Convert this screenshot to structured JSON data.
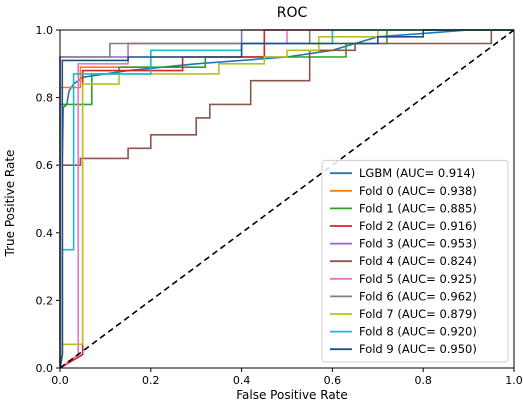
{
  "chart_data": {
    "type": "line",
    "title": "ROC",
    "xlabel": "False Positive Rate",
    "ylabel": "True Positive Rate",
    "xlim": [
      0.0,
      1.0
    ],
    "ylim": [
      0.0,
      1.0
    ],
    "x_ticks": [
      "0.0",
      "0.2",
      "0.4",
      "0.6",
      "0.8",
      "1.0"
    ],
    "y_ticks": [
      "0.0",
      "0.2",
      "0.4",
      "0.6",
      "0.8",
      "1.0"
    ],
    "grid": false,
    "legend_position": "lower-right",
    "diagonal": {
      "style": "dashed",
      "color": "#000000",
      "points": [
        [
          0,
          0
        ],
        [
          1,
          1
        ]
      ]
    },
    "series": [
      {
        "name": "LGBM (AUC= 0.914)",
        "color": "#1f77b4",
        "points": [
          [
            0,
            0
          ],
          [
            0.005,
            0.04
          ],
          [
            0.005,
            0.2
          ],
          [
            0.005,
            0.6
          ],
          [
            0.007,
            0.77
          ],
          [
            0.015,
            0.78
          ],
          [
            0.02,
            0.82
          ],
          [
            0.03,
            0.84
          ],
          [
            0.05,
            0.86
          ],
          [
            0.1,
            0.87
          ],
          [
            0.15,
            0.88
          ],
          [
            0.3,
            0.9
          ],
          [
            0.5,
            0.92
          ],
          [
            0.6,
            0.94
          ],
          [
            0.65,
            0.96
          ],
          [
            0.7,
            0.98
          ],
          [
            0.8,
            0.99
          ],
          [
            0.9,
            1.0
          ],
          [
            1,
            1
          ]
        ]
      },
      {
        "name": "Fold 0 (AUC= 0.938)",
        "color": "#ff7f0e",
        "points": [
          [
            0,
            0
          ],
          [
            0,
            0.83
          ],
          [
            0.045,
            0.83
          ],
          [
            0.045,
            0.89
          ],
          [
            0.2,
            0.89
          ],
          [
            0.2,
            0.92
          ],
          [
            0.45,
            0.92
          ],
          [
            0.45,
            0.96
          ],
          [
            0.6,
            0.96
          ],
          [
            0.6,
            1.0
          ],
          [
            1,
            1
          ]
        ]
      },
      {
        "name": "Fold 1 (AUC= 0.885)",
        "color": "#2ca02c",
        "points": [
          [
            0,
            0
          ],
          [
            0,
            0.78
          ],
          [
            0.07,
            0.78
          ],
          [
            0.07,
            0.87
          ],
          [
            0.13,
            0.87
          ],
          [
            0.13,
            0.89
          ],
          [
            0.32,
            0.89
          ],
          [
            0.32,
            0.92
          ],
          [
            0.63,
            0.92
          ],
          [
            0.63,
            0.96
          ],
          [
            0.72,
            0.96
          ],
          [
            0.72,
            1.0
          ],
          [
            1,
            1
          ]
        ]
      },
      {
        "name": "Fold 2 (AUC= 0.916)",
        "color": "#d62728",
        "points": [
          [
            0,
            0
          ],
          [
            0.05,
            0.04
          ],
          [
            0.05,
            0.88
          ],
          [
            0.27,
            0.88
          ],
          [
            0.27,
            0.92
          ],
          [
            0.45,
            0.92
          ],
          [
            0.45,
            1.0
          ],
          [
            1,
            1
          ]
        ]
      },
      {
        "name": "Fold 3 (AUC= 0.953)",
        "color": "#9467bd",
        "points": [
          [
            0,
            0
          ],
          [
            0,
            0.92
          ],
          [
            0.15,
            0.92
          ],
          [
            0.15,
            0.96
          ],
          [
            0.4,
            0.96
          ],
          [
            0.4,
            1.0
          ],
          [
            1,
            1
          ]
        ]
      },
      {
        "name": "Fold 4 (AUC= 0.824)",
        "color": "#8c564b",
        "points": [
          [
            0,
            0
          ],
          [
            0.005,
            0.04
          ],
          [
            0.005,
            0.6
          ],
          [
            0.045,
            0.6
          ],
          [
            0.045,
            0.62
          ],
          [
            0.15,
            0.62
          ],
          [
            0.15,
            0.65
          ],
          [
            0.2,
            0.65
          ],
          [
            0.2,
            0.69
          ],
          [
            0.3,
            0.69
          ],
          [
            0.3,
            0.74
          ],
          [
            0.33,
            0.74
          ],
          [
            0.33,
            0.78
          ],
          [
            0.42,
            0.78
          ],
          [
            0.42,
            0.85
          ],
          [
            0.55,
            0.85
          ],
          [
            0.55,
            0.94
          ],
          [
            0.65,
            0.94
          ],
          [
            0.65,
            0.96
          ],
          [
            0.95,
            0.96
          ],
          [
            0.95,
            1.0
          ],
          [
            1,
            1
          ]
        ]
      },
      {
        "name": "Fold 5 (AUC= 0.925)",
        "color": "#e377c2",
        "points": [
          [
            0,
            0
          ],
          [
            0.04,
            0.04
          ],
          [
            0.04,
            0.9
          ],
          [
            0.15,
            0.9
          ],
          [
            0.15,
            0.96
          ],
          [
            0.5,
            0.96
          ],
          [
            0.5,
            1.0
          ],
          [
            1,
            1
          ]
        ]
      },
      {
        "name": "Fold 6 (AUC= 0.962)",
        "color": "#7f7f7f",
        "points": [
          [
            0,
            0
          ],
          [
            0,
            0.92
          ],
          [
            0.11,
            0.92
          ],
          [
            0.11,
            0.96
          ],
          [
            0.55,
            0.96
          ],
          [
            0.55,
            1.0
          ],
          [
            1,
            1
          ]
        ]
      },
      {
        "name": "Fold 7 (AUC= 0.879)",
        "color": "#bcbd22",
        "points": [
          [
            0,
            0
          ],
          [
            0.005,
            0.04
          ],
          [
            0.005,
            0.07
          ],
          [
            0.05,
            0.07
          ],
          [
            0.05,
            0.84
          ],
          [
            0.13,
            0.84
          ],
          [
            0.13,
            0.87
          ],
          [
            0.35,
            0.87
          ],
          [
            0.35,
            0.9
          ],
          [
            0.45,
            0.9
          ],
          [
            0.45,
            0.92
          ],
          [
            0.5,
            0.92
          ],
          [
            0.5,
            0.94
          ],
          [
            0.57,
            0.94
          ],
          [
            0.57,
            0.98
          ],
          [
            0.7,
            0.98
          ],
          [
            0.7,
            1.0
          ],
          [
            1,
            1
          ]
        ]
      },
      {
        "name": "Fold 8 (AUC= 0.920)",
        "color": "#17becf",
        "points": [
          [
            0,
            0
          ],
          [
            0.005,
            0.04
          ],
          [
            0.005,
            0.35
          ],
          [
            0.03,
            0.35
          ],
          [
            0.03,
            0.87
          ],
          [
            0.2,
            0.87
          ],
          [
            0.2,
            0.94
          ],
          [
            0.4,
            0.94
          ],
          [
            0.4,
            0.96
          ],
          [
            0.6,
            0.96
          ],
          [
            0.6,
            1.0
          ],
          [
            1,
            1
          ]
        ]
      },
      {
        "name": "Fold 9 (AUC= 0.950)",
        "color": "#1f4e89",
        "points": [
          [
            0,
            0
          ],
          [
            0.005,
            0.04
          ],
          [
            0.005,
            0.91
          ],
          [
            0.15,
            0.91
          ],
          [
            0.15,
            0.92
          ],
          [
            0.4,
            0.92
          ],
          [
            0.4,
            0.96
          ],
          [
            0.7,
            0.96
          ],
          [
            0.7,
            0.98
          ],
          [
            0.8,
            0.98
          ],
          [
            0.8,
            1.0
          ],
          [
            1,
            1
          ]
        ]
      }
    ]
  }
}
